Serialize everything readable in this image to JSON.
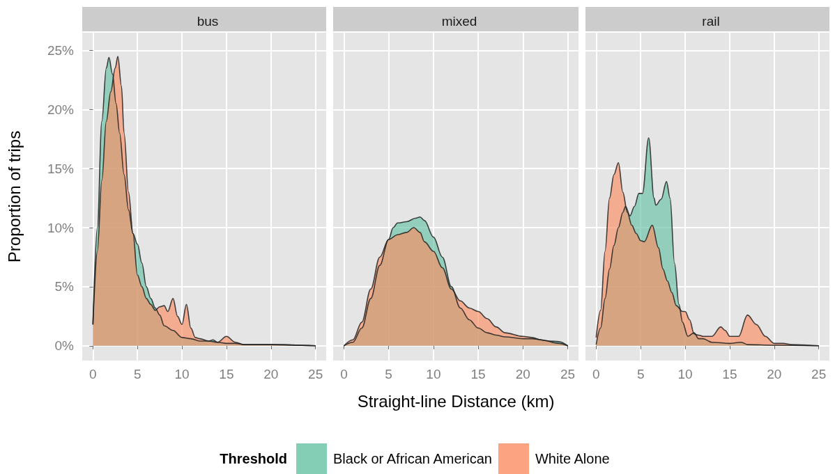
{
  "chart_data": [
    {
      "type": "area",
      "title": "bus",
      "ylabel": "Proportion of trips",
      "legend": "bottom",
      "legend_title": "Threshold",
      "xlim": [
        -1.2,
        26.2
      ],
      "ylim": [
        -1.25,
        26.5
      ],
      "xticks": [
        0,
        5,
        10,
        15,
        20,
        25
      ],
      "yticks": [
        {
          "value": 0,
          "label": "0%"
        },
        {
          "value": 5,
          "label": "5%"
        },
        {
          "value": 10,
          "label": "10%"
        },
        {
          "value": 15,
          "label": "15%"
        },
        {
          "value": 20,
          "label": "20%"
        },
        {
          "value": 25,
          "label": "25%"
        }
      ],
      "grid": true,
      "series": [
        {
          "name": "Black or African American",
          "color": "#66c2a5",
          "x": [
            0,
            0.5,
            1,
            1.5,
            1.8,
            2.2,
            2.6,
            3,
            3.5,
            4,
            4.5,
            5,
            5.5,
            6,
            6.5,
            7,
            7.5,
            8,
            9,
            10,
            11,
            12,
            13,
            13.5,
            14,
            15,
            16,
            17,
            20,
            25
          ],
          "values": [
            1.8,
            10,
            19,
            23.5,
            24.4,
            23,
            20.5,
            18,
            14.5,
            11.5,
            9.5,
            8.6,
            7,
            5,
            4,
            3.2,
            2.6,
            1.7,
            1.3,
            0.7,
            0.6,
            0.4,
            0.4,
            0.5,
            0.3,
            0.2,
            0.2,
            0.1,
            0.1,
            0
          ]
        },
        {
          "name": "White Alone",
          "color": "#fc8d62",
          "x": [
            0,
            0.5,
            1,
            1.5,
            2,
            2.5,
            2.8,
            3.2,
            3.5,
            4,
            4.5,
            5,
            5.5,
            6,
            6.5,
            7,
            7.5,
            8,
            8.4,
            9,
            9.5,
            10,
            10.5,
            11,
            11.5,
            12,
            13,
            14,
            15,
            16,
            17,
            20,
            25
          ],
          "values": [
            1.8,
            8,
            14,
            19,
            21.5,
            23.5,
            24.5,
            22,
            18,
            13,
            9.5,
            6,
            5,
            4,
            3.5,
            3,
            3.3,
            3.4,
            2.9,
            4,
            2.5,
            1.8,
            3.5,
            1.5,
            0.7,
            0.6,
            0.4,
            0.3,
            0.8,
            0.3,
            0.1,
            0.1,
            0
          ]
        }
      ]
    },
    {
      "type": "area",
      "title": "mixed",
      "xlabel": "Straight-line Distance (km)",
      "xlim": [
        -1.2,
        26.2
      ],
      "ylim": [
        -1.25,
        26.5
      ],
      "xticks": [
        0,
        5,
        10,
        15,
        20,
        25
      ],
      "yticks": [
        {
          "value": 0,
          "label": null
        },
        {
          "value": 5,
          "label": null
        },
        {
          "value": 10,
          "label": null
        },
        {
          "value": 15,
          "label": null
        },
        {
          "value": 20,
          "label": null
        },
        {
          "value": 25,
          "label": null
        }
      ],
      "grid": true,
      "tick_labels": "x",
      "series": [
        {
          "color": "#66c2a5",
          "x": [
            0,
            1,
            2,
            3,
            4,
            5,
            5.5,
            6,
            7,
            8,
            8.5,
            9,
            10,
            11,
            12,
            13,
            14,
            15,
            16,
            17,
            18,
            20,
            21,
            23,
            24,
            25
          ],
          "values": [
            0,
            0.3,
            1.5,
            4,
            6.8,
            9,
            10,
            10.4,
            10.5,
            10.8,
            10.9,
            10.6,
            9.2,
            7.5,
            5,
            3.2,
            2.2,
            1.5,
            1.1,
            0.9,
            0.75,
            0.6,
            0.6,
            0.4,
            0.35,
            0
          ]
        },
        {
          "color": "#fc8d62",
          "x": [
            0,
            1,
            2,
            3,
            4,
            5,
            6,
            7,
            7.8,
            8.5,
            9,
            10,
            11,
            12,
            13,
            14,
            15,
            16,
            17,
            18,
            20,
            21,
            22,
            24,
            25
          ],
          "values": [
            0,
            0.5,
            2,
            4.8,
            7.5,
            9,
            9.4,
            9.6,
            10,
            9.6,
            8.8,
            8,
            6.6,
            4.8,
            3.8,
            3.2,
            2.9,
            2.3,
            1.6,
            1.1,
            0.8,
            0.7,
            0.5,
            0.2,
            0
          ]
        }
      ]
    },
    {
      "type": "area",
      "title": "rail",
      "xlim": [
        -1.2,
        26.2
      ],
      "ylim": [
        -1.25,
        26.5
      ],
      "xticks": [
        0,
        5,
        10,
        15,
        20,
        25
      ],
      "yticks": [
        {
          "value": 0,
          "label": null
        },
        {
          "value": 5,
          "label": null
        },
        {
          "value": 10,
          "label": null
        },
        {
          "value": 15,
          "label": null
        },
        {
          "value": 20,
          "label": null
        },
        {
          "value": 25,
          "label": null
        }
      ],
      "grid": true,
      "tick_labels": "x",
      "series": [
        {
          "color": "#66c2a5",
          "x": [
            0,
            0.5,
            1,
            1.5,
            2,
            2.5,
            3,
            3.3,
            3.8,
            4.3,
            4.8,
            5.2,
            5.9,
            6.5,
            6.7,
            7.3,
            7.9,
            8.3,
            8.8,
            9.3,
            9.7,
            10.3,
            11,
            11.5,
            12,
            13,
            15,
            16.3,
            17,
            20,
            25
          ],
          "values": [
            0.1,
            1.5,
            4,
            6.5,
            8.5,
            10,
            11.3,
            11.8,
            11,
            11.8,
            12.9,
            12.9,
            17.6,
            12.5,
            11.9,
            12.4,
            13.9,
            12.5,
            7,
            3.5,
            2,
            0.8,
            1.1,
            0.6,
            0.6,
            0.3,
            0.2,
            0.3,
            0.1,
            0.05,
            0
          ]
        },
        {
          "color": "#fc8d62",
          "x": [
            0,
            0.5,
            1,
            1.5,
            2,
            2.5,
            3,
            3.5,
            4,
            4.5,
            5,
            5.4,
            6.3,
            7,
            7.5,
            8,
            8.5,
            9,
            9.7,
            10,
            10.5,
            11,
            11.5,
            12,
            13,
            14,
            14.5,
            15,
            16,
            17,
            18,
            19,
            20,
            21,
            22,
            25
          ],
          "values": [
            0.7,
            3,
            8,
            12.5,
            14.5,
            15.5,
            13,
            11.3,
            10.2,
            9.5,
            8.9,
            8.8,
            10.2,
            8.3,
            6.5,
            5.5,
            4.5,
            3.4,
            2.9,
            2.9,
            2.2,
            1,
            0.9,
            0.8,
            0.8,
            1.6,
            1.3,
            0.8,
            0.8,
            2.6,
            1.8,
            0.8,
            0.2,
            0.2,
            0.1,
            0
          ]
        }
      ]
    }
  ]
}
